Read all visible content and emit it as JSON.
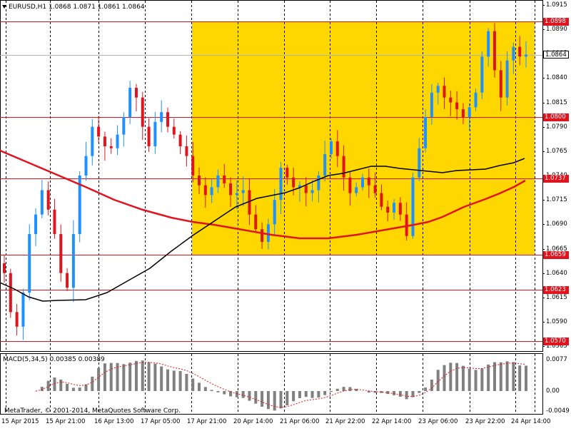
{
  "header": {
    "symbol_label": "EURUSD,H1",
    "ohlc_label": "1.0868 1.0871 1.0861 1.0864",
    "dropdown_icon": "triangle-down-icon"
  },
  "macd": {
    "label": "MACD(5,34,5) 0.00385 0.00389",
    "fast": 5,
    "slow": 34,
    "signal": 5,
    "main_value": 0.00385,
    "signal_value": 0.00389,
    "axis_labels": [
      "0.0077",
      "0.00",
      "-0.0049"
    ]
  },
  "copyright": "MetaTrader, © 2001-2014, MetaQuotes Software Corp.",
  "price_axis": {
    "labels": [
      "1.0915",
      "1.0890",
      "1.0865",
      "1.0840",
      "1.0815",
      "1.0790",
      "1.0765",
      "1.0740",
      "1.0715",
      "1.0690",
      "1.0665",
      "1.0640",
      "1.0615",
      "1.0590",
      "1.0565"
    ]
  },
  "levels": [
    {
      "value": "1.0898",
      "color": "#e0141e"
    },
    {
      "value": "1.0800",
      "color": "#e0141e"
    },
    {
      "value": "1.0737",
      "color": "#e0141e"
    },
    {
      "value": "1.0659",
      "color": "#e0141e"
    },
    {
      "value": "1.0623",
      "color": "#e0141e"
    },
    {
      "value": "1.0570",
      "color": "#e0141e"
    }
  ],
  "current_price": "1.0864",
  "time_axis": {
    "labels": [
      "15 Apr 2015",
      "15 Apr 21:00",
      "16 Apr 13:00",
      "17 Apr 05:00",
      "17 Apr 21:00",
      "20 Apr 14:00",
      "21 Apr 06:00",
      "21 Apr 22:00",
      "22 Apr 14:00",
      "23 Apr 06:00",
      "23 Apr 22:00",
      "24 Apr 14:00"
    ]
  },
  "colors": {
    "bull": "#1e90ff",
    "bear": "#e0141e",
    "zone": "#ffd700",
    "ma_fast": "#e0141e",
    "ma_slow": "#000000",
    "histogram": "#808080",
    "signal": "#e0141e"
  },
  "chart_data": {
    "type": "candlestick",
    "symbol": "EURUSD",
    "timeframe": "H1",
    "y_range": [
      1.056,
      1.092
    ],
    "close_path": [
      1.064,
      1.06,
      1.0585,
      1.062,
      1.068,
      1.07,
      1.0725,
      1.0705,
      1.068,
      1.064,
      1.0625,
      1.068,
      1.074,
      1.076,
      1.079,
      1.078,
      1.077,
      1.0768,
      1.0782,
      1.08,
      1.083,
      1.082,
      1.079,
      1.077,
      1.0795,
      1.0805,
      1.079,
      1.0782,
      1.077,
      1.076,
      1.074,
      1.073,
      1.072,
      1.0728,
      1.074,
      1.0732,
      1.072,
      1.0722,
      1.0725,
      1.07,
      1.0685,
      1.0672,
      1.069,
      1.0715,
      1.0748,
      1.0738,
      1.0728,
      1.073,
      1.0722,
      1.0725,
      1.074,
      1.0762,
      1.0775,
      1.076,
      1.0738,
      1.0722,
      1.0728,
      1.0738,
      1.073,
      1.0722,
      1.0708,
      1.0702,
      1.0712,
      1.07,
      1.0678,
      1.0738,
      1.0768,
      1.08,
      1.0825,
      1.0832,
      1.082,
      1.0815,
      1.0808,
      1.08,
      1.081,
      1.0825,
      1.0862,
      1.0888,
      1.0848,
      1.082,
      1.0858,
      1.0872,
      1.0862,
      1.0864
    ],
    "zone": {
      "from": "17 Apr 21:00",
      "top": 1.0898,
      "bottom": 1.0659
    }
  }
}
